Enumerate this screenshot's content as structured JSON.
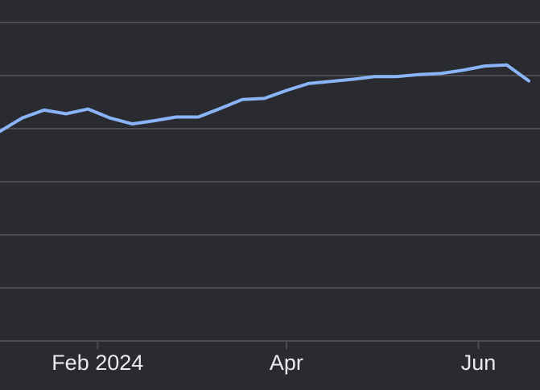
{
  "colors": {
    "background": "#2a2b30",
    "gridline": "#4a4c51",
    "text": "#e8eaed",
    "line": "#8ab4f8"
  },
  "chart_data": {
    "type": "line",
    "title": "",
    "xlabel": "",
    "ylabel": "",
    "grid": true,
    "legend": "none",
    "x_type": "date",
    "x_range": [
      "2024-01-01",
      "2024-06-18"
    ],
    "y_range": [
      0,
      6
    ],
    "y_gridlines": [
      0,
      1,
      2,
      3,
      4,
      5,
      6
    ],
    "x_ticks": [
      {
        "date": "2024-02-01",
        "label": "Feb 2024"
      },
      {
        "date": "2024-04-01",
        "label": "Apr"
      },
      {
        "date": "2024-06-01",
        "label": "Jun"
      }
    ],
    "series": [
      {
        "color": "#8ab4f8",
        "points": [
          {
            "x": "2024-01-01",
            "y": 3.95
          },
          {
            "x": "2024-01-08",
            "y": 4.2
          },
          {
            "x": "2024-01-15",
            "y": 4.35
          },
          {
            "x": "2024-01-22",
            "y": 4.28
          },
          {
            "x": "2024-01-29",
            "y": 4.37
          },
          {
            "x": "2024-02-05",
            "y": 4.2
          },
          {
            "x": "2024-02-12",
            "y": 4.09
          },
          {
            "x": "2024-02-19",
            "y": 4.15
          },
          {
            "x": "2024-02-26",
            "y": 4.22
          },
          {
            "x": "2024-03-04",
            "y": 4.22
          },
          {
            "x": "2024-03-11",
            "y": 4.38
          },
          {
            "x": "2024-03-18",
            "y": 4.55
          },
          {
            "x": "2024-03-25",
            "y": 4.57
          },
          {
            "x": "2024-04-01",
            "y": 4.72
          },
          {
            "x": "2024-04-08",
            "y": 4.85
          },
          {
            "x": "2024-04-15",
            "y": 4.89
          },
          {
            "x": "2024-04-22",
            "y": 4.93
          },
          {
            "x": "2024-04-29",
            "y": 4.98
          },
          {
            "x": "2024-05-06",
            "y": 4.98
          },
          {
            "x": "2024-05-13",
            "y": 5.02
          },
          {
            "x": "2024-05-20",
            "y": 5.04
          },
          {
            "x": "2024-05-27",
            "y": 5.1
          },
          {
            "x": "2024-06-03",
            "y": 5.18
          },
          {
            "x": "2024-06-10",
            "y": 5.2
          },
          {
            "x": "2024-06-17",
            "y": 4.9
          }
        ]
      }
    ]
  }
}
